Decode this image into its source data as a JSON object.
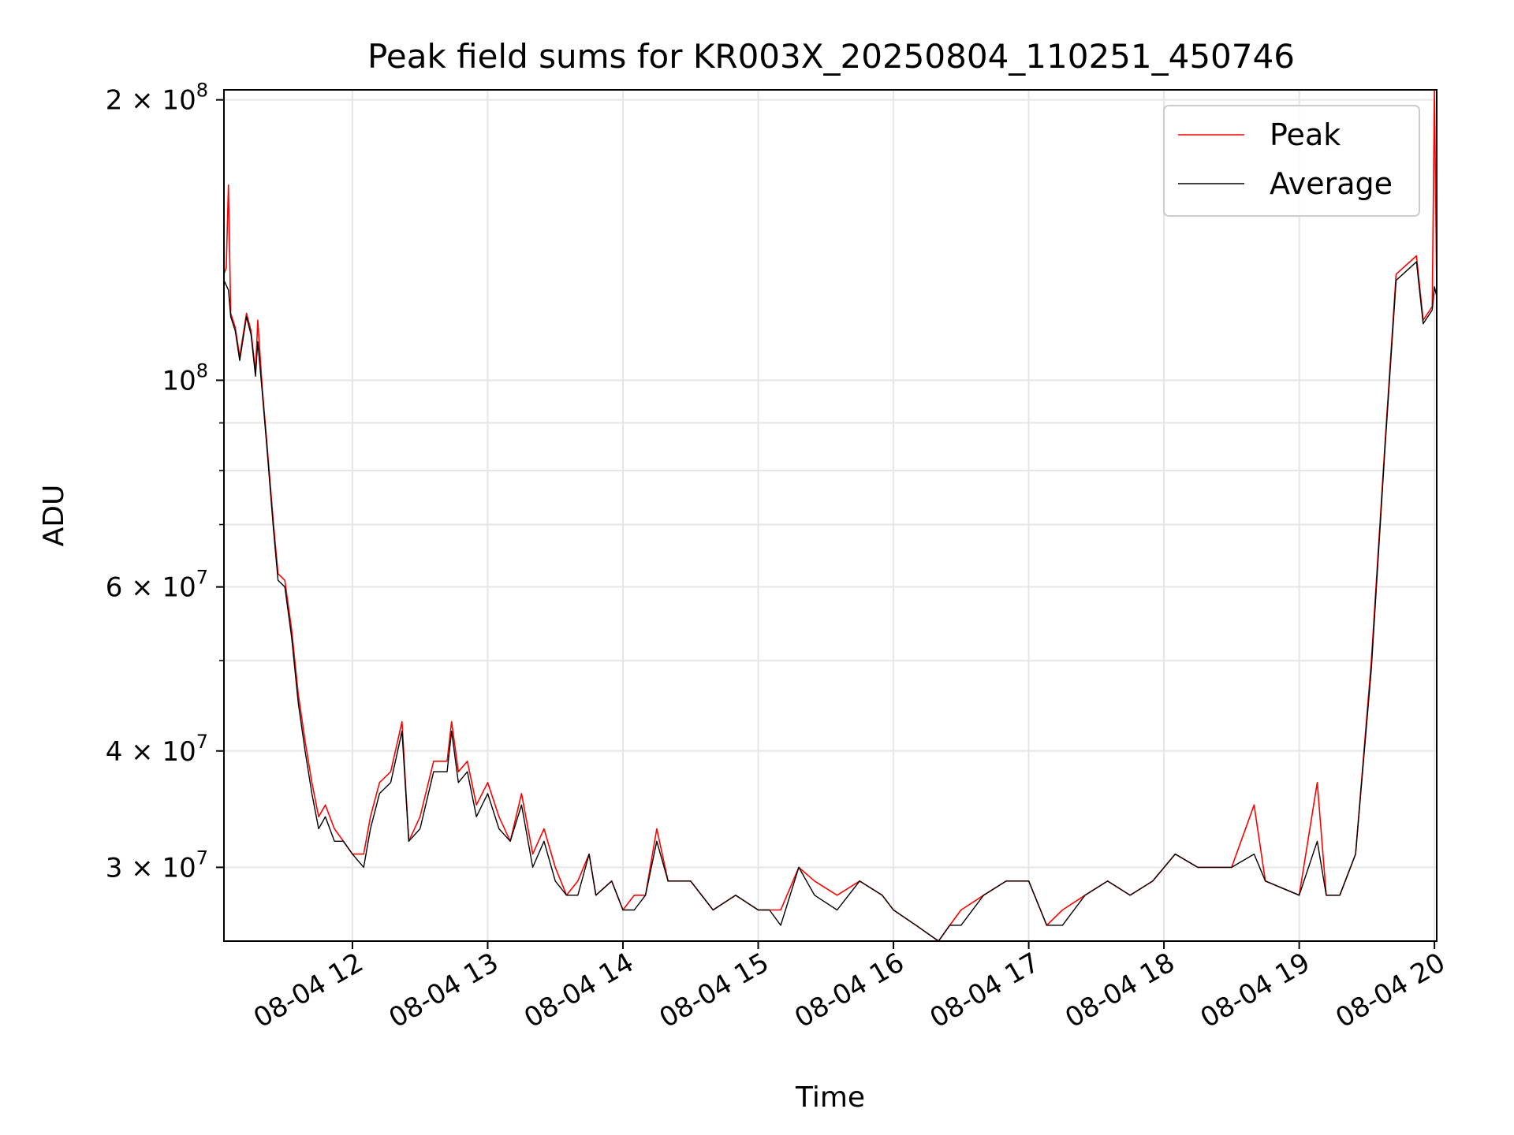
{
  "chart_data": {
    "type": "line",
    "title": "Peak field sums for KR003X_20250804_110251_450746",
    "xlabel": "Time",
    "ylabel": "ADU",
    "yscale": "log",
    "grid": true,
    "legend_position": "top-right",
    "xlim": [
      "2025-08-04 11:03",
      "2025-08-04 20:01"
    ],
    "ylim": [
      25000000,
      205000000
    ],
    "x_ticks": [
      {
        "value": "2025-08-04 12:00",
        "label": "08-04 12"
      },
      {
        "value": "2025-08-04 13:00",
        "label": "08-04 13"
      },
      {
        "value": "2025-08-04 14:00",
        "label": "08-04 14"
      },
      {
        "value": "2025-08-04 15:00",
        "label": "08-04 15"
      },
      {
        "value": "2025-08-04 16:00",
        "label": "08-04 16"
      },
      {
        "value": "2025-08-04 17:00",
        "label": "08-04 17"
      },
      {
        "value": "2025-08-04 18:00",
        "label": "08-04 18"
      },
      {
        "value": "2025-08-04 19:00",
        "label": "08-04 19"
      },
      {
        "value": "2025-08-04 20:00",
        "label": "08-04 20"
      }
    ],
    "y_ticks": [
      {
        "value": 200000000,
        "mantissa": "2",
        "exp": "8",
        "has_mantissa": true
      },
      {
        "value": 100000000,
        "mantissa": "",
        "exp": "8",
        "has_mantissa": false
      },
      {
        "value": 60000000,
        "mantissa": "6",
        "exp": "7",
        "has_mantissa": true
      },
      {
        "value": 40000000,
        "mantissa": "4",
        "exp": "7",
        "has_mantissa": true
      },
      {
        "value": 30000000,
        "mantissa": "3",
        "exp": "7",
        "has_mantissa": true
      }
    ],
    "y_minor_grid": [
      50000000,
      70000000,
      80000000,
      90000000
    ],
    "series": [
      {
        "name": "Peak",
        "color": "#ff0000",
        "points": [
          [
            "2025-08-04 11:03",
            130000000.0
          ],
          [
            "2025-08-04 11:04",
            132000000.0
          ],
          [
            "2025-08-04 11:05",
            162000000.0
          ],
          [
            "2025-08-04 11:06",
            118000000.0
          ],
          [
            "2025-08-04 11:08",
            114000000.0
          ],
          [
            "2025-08-04 11:10",
            106000000.0
          ],
          [
            "2025-08-04 11:13",
            118000000.0
          ],
          [
            "2025-08-04 11:15",
            113000000.0
          ],
          [
            "2025-08-04 11:17",
            102000000.0
          ],
          [
            "2025-08-04 11:18",
            116000000.0
          ],
          [
            "2025-08-04 11:20",
            98000000.0
          ],
          [
            "2025-08-04 11:22",
            86000000.0
          ],
          [
            "2025-08-04 11:25",
            70000000.0
          ],
          [
            "2025-08-04 11:27",
            62000000.0
          ],
          [
            "2025-08-04 11:30",
            61000000.0
          ],
          [
            "2025-08-04 11:33",
            54000000.0
          ],
          [
            "2025-08-04 11:36",
            46000000.0
          ],
          [
            "2025-08-04 11:39",
            41000000.0
          ],
          [
            "2025-08-04 11:42",
            37000000.0
          ],
          [
            "2025-08-04 11:45",
            34000000.0
          ],
          [
            "2025-08-04 11:48",
            35000000.0
          ],
          [
            "2025-08-04 11:52",
            33000000.0
          ],
          [
            "2025-08-04 11:56",
            32000000.0
          ],
          [
            "2025-08-04 12:00",
            31000000.0
          ],
          [
            "2025-08-04 12:05",
            31000000.0
          ],
          [
            "2025-08-04 12:08",
            34000000.0
          ],
          [
            "2025-08-04 12:12",
            37000000.0
          ],
          [
            "2025-08-04 12:17",
            38000000.0
          ],
          [
            "2025-08-04 12:22",
            43000000.0
          ],
          [
            "2025-08-04 12:25",
            32000000.0
          ],
          [
            "2025-08-04 12:30",
            34000000.0
          ],
          [
            "2025-08-04 12:36",
            39000000.0
          ],
          [
            "2025-08-04 12:42",
            39000000.0
          ],
          [
            "2025-08-04 12:44",
            43000000.0
          ],
          [
            "2025-08-04 12:47",
            38000000.0
          ],
          [
            "2025-08-04 12:51",
            39000000.0
          ],
          [
            "2025-08-04 12:55",
            35000000.0
          ],
          [
            "2025-08-04 13:00",
            37000000.0
          ],
          [
            "2025-08-04 13:05",
            34000000.0
          ],
          [
            "2025-08-04 13:10",
            32000000.0
          ],
          [
            "2025-08-04 13:15",
            36000000.0
          ],
          [
            "2025-08-04 13:20",
            31000000.0
          ],
          [
            "2025-08-04 13:25",
            33000000.0
          ],
          [
            "2025-08-04 13:30",
            30000000.0
          ],
          [
            "2025-08-04 13:35",
            28000000.0
          ],
          [
            "2025-08-04 13:40",
            29000000.0
          ],
          [
            "2025-08-04 13:45",
            31000000.0
          ],
          [
            "2025-08-04 13:48",
            28000000.0
          ],
          [
            "2025-08-04 13:55",
            29000000.0
          ],
          [
            "2025-08-04 14:00",
            27000000.0
          ],
          [
            "2025-08-04 14:05",
            28000000.0
          ],
          [
            "2025-08-04 14:10",
            28000000.0
          ],
          [
            "2025-08-04 14:15",
            33000000.0
          ],
          [
            "2025-08-04 14:20",
            29000000.0
          ],
          [
            "2025-08-04 14:30",
            29000000.0
          ],
          [
            "2025-08-04 14:40",
            27000000.0
          ],
          [
            "2025-08-04 14:50",
            28000000.0
          ],
          [
            "2025-08-04 15:00",
            27000000.0
          ],
          [
            "2025-08-04 15:05",
            27000000.0
          ],
          [
            "2025-08-04 15:10",
            27000000.0
          ],
          [
            "2025-08-04 15:18",
            30000000.0
          ],
          [
            "2025-08-04 15:25",
            29000000.0
          ],
          [
            "2025-08-04 15:35",
            28000000.0
          ],
          [
            "2025-08-04 15:45",
            29000000.0
          ],
          [
            "2025-08-04 15:55",
            28000000.0
          ],
          [
            "2025-08-04 16:00",
            27000000.0
          ],
          [
            "2025-08-04 16:10",
            26000000.0
          ],
          [
            "2025-08-04 16:20",
            25000000.0
          ],
          [
            "2025-08-04 16:25",
            26000000.0
          ],
          [
            "2025-08-04 16:30",
            27000000.0
          ],
          [
            "2025-08-04 16:40",
            28000000.0
          ],
          [
            "2025-08-04 16:50",
            29000000.0
          ],
          [
            "2025-08-04 17:00",
            29000000.0
          ],
          [
            "2025-08-04 17:08",
            26000000.0
          ],
          [
            "2025-08-04 17:15",
            27000000.0
          ],
          [
            "2025-08-04 17:25",
            28000000.0
          ],
          [
            "2025-08-04 17:35",
            29000000.0
          ],
          [
            "2025-08-04 17:45",
            28000000.0
          ],
          [
            "2025-08-04 17:55",
            29000000.0
          ],
          [
            "2025-08-04 18:05",
            31000000.0
          ],
          [
            "2025-08-04 18:15",
            30000000.0
          ],
          [
            "2025-08-04 18:30",
            30000000.0
          ],
          [
            "2025-08-04 18:40",
            35000000.0
          ],
          [
            "2025-08-04 18:45",
            29000000.0
          ],
          [
            "2025-08-04 19:00",
            28000000.0
          ],
          [
            "2025-08-04 19:08",
            37000000.0
          ],
          [
            "2025-08-04 19:12",
            28000000.0
          ],
          [
            "2025-08-04 19:18",
            28000000.0
          ],
          [
            "2025-08-04 19:25",
            31000000.0
          ],
          [
            "2025-08-04 19:32",
            50000000.0
          ],
          [
            "2025-08-04 19:38",
            85000000.0
          ],
          [
            "2025-08-04 19:43",
            130000000.0
          ],
          [
            "2025-08-04 19:52",
            136000000.0
          ],
          [
            "2025-08-04 19:55",
            116000000.0
          ],
          [
            "2025-08-04 19:59",
            120000000.0
          ],
          [
            "2025-08-04 20:00",
            205000000.0
          ],
          [
            "2025-08-04 20:01",
            125000000.0
          ]
        ]
      },
      {
        "name": "Average",
        "color": "#000000",
        "points": [
          [
            "2025-08-04 11:03",
            128000000.0
          ],
          [
            "2025-08-04 11:05",
            125000000.0
          ],
          [
            "2025-08-04 11:06",
            117000000.0
          ],
          [
            "2025-08-04 11:08",
            113000000.0
          ],
          [
            "2025-08-04 11:10",
            105000000.0
          ],
          [
            "2025-08-04 11:13",
            117000000.0
          ],
          [
            "2025-08-04 11:15",
            112000000.0
          ],
          [
            "2025-08-04 11:17",
            101000000.0
          ],
          [
            "2025-08-04 11:18",
            110000000.0
          ],
          [
            "2025-08-04 11:20",
            97000000.0
          ],
          [
            "2025-08-04 11:22",
            85000000.0
          ],
          [
            "2025-08-04 11:25",
            69000000.0
          ],
          [
            "2025-08-04 11:27",
            61000000.0
          ],
          [
            "2025-08-04 11:30",
            60000000.0
          ],
          [
            "2025-08-04 11:33",
            53000000.0
          ],
          [
            "2025-08-04 11:36",
            45000000.0
          ],
          [
            "2025-08-04 11:39",
            40000000.0
          ],
          [
            "2025-08-04 11:42",
            36000000.0
          ],
          [
            "2025-08-04 11:45",
            33000000.0
          ],
          [
            "2025-08-04 11:48",
            34000000.0
          ],
          [
            "2025-08-04 11:52",
            32000000.0
          ],
          [
            "2025-08-04 11:56",
            32000000.0
          ],
          [
            "2025-08-04 12:00",
            31000000.0
          ],
          [
            "2025-08-04 12:05",
            30000000.0
          ],
          [
            "2025-08-04 12:08",
            33000000.0
          ],
          [
            "2025-08-04 12:12",
            36000000.0
          ],
          [
            "2025-08-04 12:17",
            37000000.0
          ],
          [
            "2025-08-04 12:22",
            42000000.0
          ],
          [
            "2025-08-04 12:25",
            32000000.0
          ],
          [
            "2025-08-04 12:30",
            33000000.0
          ],
          [
            "2025-08-04 12:36",
            38000000.0
          ],
          [
            "2025-08-04 12:42",
            38000000.0
          ],
          [
            "2025-08-04 12:44",
            42000000.0
          ],
          [
            "2025-08-04 12:47",
            37000000.0
          ],
          [
            "2025-08-04 12:51",
            38000000.0
          ],
          [
            "2025-08-04 12:55",
            34000000.0
          ],
          [
            "2025-08-04 13:00",
            36000000.0
          ],
          [
            "2025-08-04 13:05",
            33000000.0
          ],
          [
            "2025-08-04 13:10",
            32000000.0
          ],
          [
            "2025-08-04 13:15",
            35000000.0
          ],
          [
            "2025-08-04 13:20",
            30000000.0
          ],
          [
            "2025-08-04 13:25",
            32000000.0
          ],
          [
            "2025-08-04 13:30",
            29000000.0
          ],
          [
            "2025-08-04 13:35",
            28000000.0
          ],
          [
            "2025-08-04 13:40",
            28000000.0
          ],
          [
            "2025-08-04 13:45",
            31000000.0
          ],
          [
            "2025-08-04 13:48",
            28000000.0
          ],
          [
            "2025-08-04 13:55",
            29000000.0
          ],
          [
            "2025-08-04 14:00",
            27000000.0
          ],
          [
            "2025-08-04 14:05",
            27000000.0
          ],
          [
            "2025-08-04 14:10",
            28000000.0
          ],
          [
            "2025-08-04 14:15",
            32000000.0
          ],
          [
            "2025-08-04 14:20",
            29000000.0
          ],
          [
            "2025-08-04 14:30",
            29000000.0
          ],
          [
            "2025-08-04 14:40",
            27000000.0
          ],
          [
            "2025-08-04 14:50",
            28000000.0
          ],
          [
            "2025-08-04 15:00",
            27000000.0
          ],
          [
            "2025-08-04 15:05",
            27000000.0
          ],
          [
            "2025-08-04 15:10",
            26000000.0
          ],
          [
            "2025-08-04 15:18",
            30000000.0
          ],
          [
            "2025-08-04 15:25",
            28000000.0
          ],
          [
            "2025-08-04 15:35",
            27000000.0
          ],
          [
            "2025-08-04 15:45",
            29000000.0
          ],
          [
            "2025-08-04 15:55",
            28000000.0
          ],
          [
            "2025-08-04 16:00",
            27000000.0
          ],
          [
            "2025-08-04 16:10",
            26000000.0
          ],
          [
            "2025-08-04 16:20",
            25000000.0
          ],
          [
            "2025-08-04 16:25",
            26000000.0
          ],
          [
            "2025-08-04 16:30",
            26000000.0
          ],
          [
            "2025-08-04 16:40",
            28000000.0
          ],
          [
            "2025-08-04 16:50",
            29000000.0
          ],
          [
            "2025-08-04 17:00",
            29000000.0
          ],
          [
            "2025-08-04 17:08",
            26000000.0
          ],
          [
            "2025-08-04 17:15",
            26000000.0
          ],
          [
            "2025-08-04 17:25",
            28000000.0
          ],
          [
            "2025-08-04 17:35",
            29000000.0
          ],
          [
            "2025-08-04 17:45",
            28000000.0
          ],
          [
            "2025-08-04 17:55",
            29000000.0
          ],
          [
            "2025-08-04 18:05",
            31000000.0
          ],
          [
            "2025-08-04 18:15",
            30000000.0
          ],
          [
            "2025-08-04 18:30",
            30000000.0
          ],
          [
            "2025-08-04 18:40",
            31000000.0
          ],
          [
            "2025-08-04 18:45",
            29000000.0
          ],
          [
            "2025-08-04 19:00",
            28000000.0
          ],
          [
            "2025-08-04 19:08",
            32000000.0
          ],
          [
            "2025-08-04 19:12",
            28000000.0
          ],
          [
            "2025-08-04 19:18",
            28000000.0
          ],
          [
            "2025-08-04 19:25",
            31000000.0
          ],
          [
            "2025-08-04 19:32",
            49000000.0
          ],
          [
            "2025-08-04 19:38",
            84000000.0
          ],
          [
            "2025-08-04 19:43",
            128000000.0
          ],
          [
            "2025-08-04 19:52",
            134000000.0
          ],
          [
            "2025-08-04 19:55",
            115000000.0
          ],
          [
            "2025-08-04 19:59",
            119000000.0
          ],
          [
            "2025-08-04 20:00",
            126000000.0
          ],
          [
            "2025-08-04 20:01",
            123000000.0
          ]
        ]
      }
    ]
  }
}
